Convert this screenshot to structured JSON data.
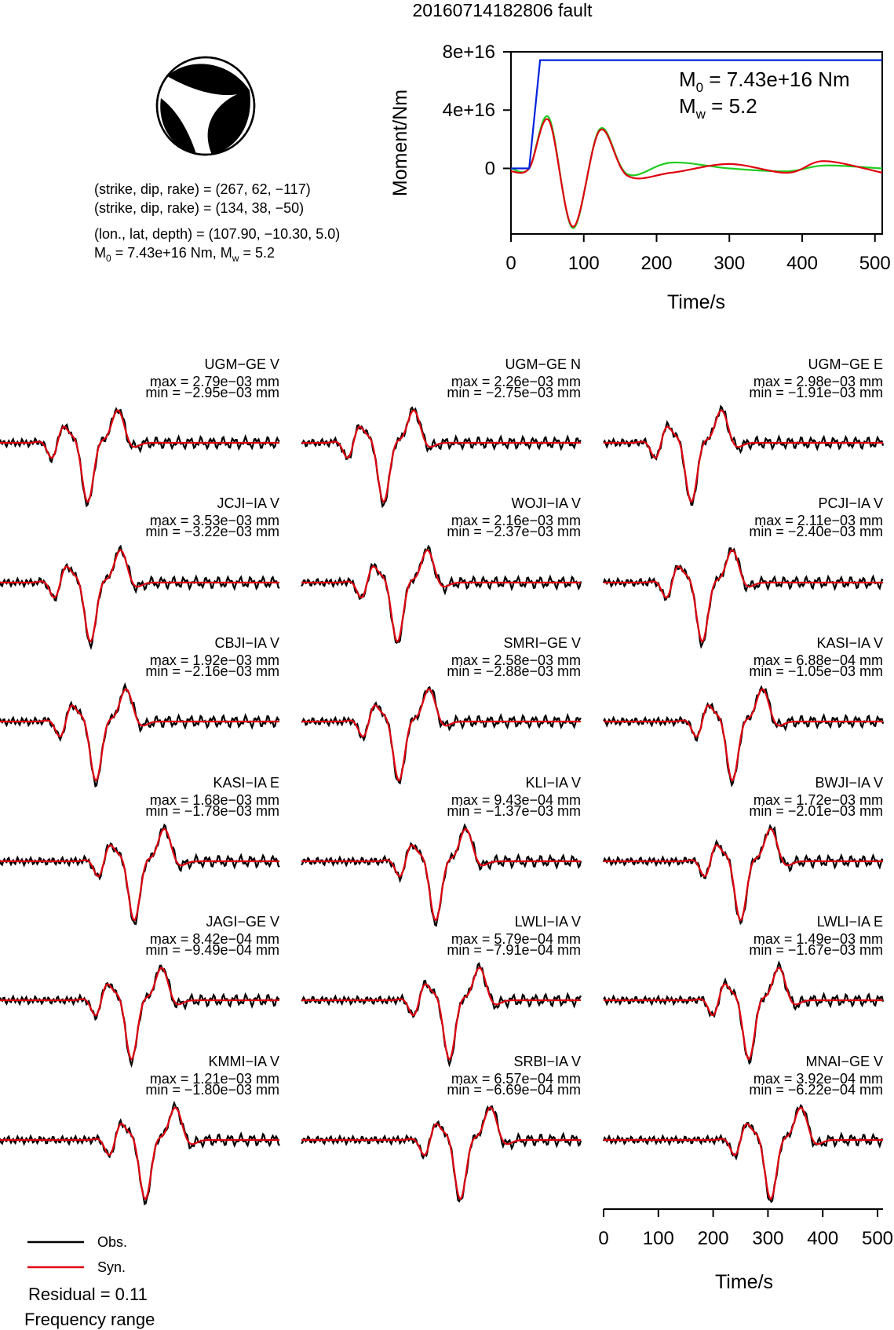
{
  "figure": {
    "title": "20160714182806 fault"
  },
  "mechanism": {
    "plane1": "(strike, dip, rake) = (267, 62, −117)",
    "plane2": "(strike, dip, rake) = (134, 38, −50)",
    "location": "(lon., lat, depth) = (107.90, −10.30, 5.0)",
    "moment_base": "M",
    "moment_sub": "0",
    "moment_value": " = 7.43e+16 Nm, M",
    "mw_sub": "w",
    "mw_value": " = 5.2",
    "colors": {
      "compressional": "#000000",
      "dilatational": "#ffffff"
    }
  },
  "moment_chart": {
    "ylabel": "Moment/Nm",
    "xlabel": "Time/s",
    "m0_base": "M",
    "m0_sub": "0",
    "m0_value": " = 7.43e+16 Nm",
    "mw_base": "M",
    "mw_sub": "w",
    "mw_value": " = 5.2",
    "x_ticks": [
      "0",
      "100",
      "200",
      "300",
      "400",
      "500"
    ],
    "y_ticks": [
      "0",
      "4e+16",
      "8e+16"
    ]
  },
  "waveform_axis": {
    "xlabel": "Time/s",
    "x_ticks": [
      "0",
      "100",
      "200",
      "300",
      "400",
      "500"
    ]
  },
  "legend": {
    "obs_label": "Obs.",
    "syn_label": "Syn.",
    "residual": "Residual = 0.11",
    "frequency": "Frequency range"
  },
  "colors": {
    "observed": "#000000",
    "synthetic": "#e0000f",
    "moment": "#0022dd",
    "stf_green": "#1fcc1f"
  },
  "chart_data": [
    {
      "type": "line",
      "title": "",
      "xlabel": "Time/s",
      "ylabel": "Moment/Nm",
      "xlim": [
        0,
        510
      ],
      "ylim": [
        -4.5e+16,
        8e+16
      ],
      "series": [
        {
          "color": "blue",
          "x": [
            0,
            25,
            40,
            510
          ],
          "values": [
            0,
            0,
            7.43e+16,
            7.43e+16
          ]
        },
        {
          "color": "red",
          "x": [
            0,
            25,
            52,
            85,
            122,
            160,
            220,
            300,
            380,
            430,
            510
          ],
          "values": [
            -2000000000000000.0,
            0,
            3.3e+16,
            -4e+16,
            2.6e+16,
            -5000000000000000.0,
            -3000000000000000.0,
            3000000000000000.0,
            -3000000000000000.0,
            5000000000000000.0,
            -3000000000000000.0
          ]
        },
        {
          "color": "green",
          "x": [
            0,
            25,
            52,
            85,
            122,
            160,
            220,
            300,
            380,
            430,
            510
          ],
          "values": [
            0,
            0,
            3.5e+16,
            -4.1e+16,
            2.7e+16,
            -4000000000000000.0,
            4000000000000000.0,
            0,
            -2000000000000000.0,
            2000000000000000.0,
            0
          ]
        }
      ]
    },
    {
      "type": "line",
      "xlabel": "Time/s",
      "xlim": [
        0,
        510
      ],
      "panels": [
        {
          "station": "UGM−GE V",
          "max": "max = 2.79e−03 mm",
          "min": "min = −2.95e−03 mm",
          "peak_time": 160,
          "polarity": 1
        },
        {
          "station": "UGM−GE N",
          "max": "max = 2.26e−03 mm",
          "min": "min = −2.75e−03 mm",
          "peak_time": 150,
          "polarity": 1
        },
        {
          "station": "UGM−GE E",
          "max": "max = 2.98e−03 mm",
          "min": "min = −1.91e−03 mm",
          "peak_time": 160,
          "polarity": 1
        },
        {
          "station": "JCJI−IA V",
          "max": "max = 3.53e−03 mm",
          "min": "min = −3.22e−03 mm",
          "peak_time": 165,
          "polarity": 1
        },
        {
          "station": "WOJI−IA V",
          "max": "max = 2.16e−03 mm",
          "min": "min = −2.37e−03 mm",
          "peak_time": 175,
          "polarity": 1
        },
        {
          "station": "PCJI−IA V",
          "max": "max = 2.11e−03 mm",
          "min": "min = −2.40e−03 mm",
          "peak_time": 180,
          "polarity": 1
        },
        {
          "station": "CBJI−IA V",
          "max": "max = 1.92e−03 mm",
          "min": "min = −2.16e−03 mm",
          "peak_time": 175,
          "polarity": 1
        },
        {
          "station": "SMRI−GE V",
          "max": "max = 2.58e−03 mm",
          "min": "min = −2.88e−03 mm",
          "peak_time": 178,
          "polarity": 1
        },
        {
          "station": "KASI−IA V",
          "max": "max = 6.88e−04 mm",
          "min": "min = −1.05e−03 mm",
          "peak_time": 235,
          "polarity": 1
        },
        {
          "station": "KASI−IA E",
          "max": "max = 1.68e−03 mm",
          "min": "min = −1.78e−03 mm",
          "peak_time": 245,
          "polarity": 1
        },
        {
          "station": "KLI−IA V",
          "max": "max = 9.43e−04 mm",
          "min": "min = −1.37e−03 mm",
          "peak_time": 245,
          "polarity": 1
        },
        {
          "station": "BWJI−IA V",
          "max": "max = 1.72e−03 mm",
          "min": "min = −2.01e−03 mm",
          "peak_time": 250,
          "polarity": 1
        },
        {
          "station": "JAGI−GE V",
          "max": "max = 8.42e−04 mm",
          "min": "min = −9.49e−04 mm",
          "peak_time": 240,
          "polarity": 1
        },
        {
          "station": "LWLI−IA V",
          "max": "max = 5.79e−04 mm",
          "min": "min = −7.91e−04 mm",
          "peak_time": 270,
          "polarity": 1
        },
        {
          "station": "LWLI−IA E",
          "max": "max = 1.49e−03 mm",
          "min": "min = −1.67e−03 mm",
          "peak_time": 265,
          "polarity": 1
        },
        {
          "station": "KMMI−IA V",
          "max": "max = 1.21e−03 mm",
          "min": "min = −1.80e−03 mm",
          "peak_time": 265,
          "polarity": 1
        },
        {
          "station": "SRBI−IA V",
          "max": "max = 6.57e−04 mm",
          "min": "min = −6.69e−04 mm",
          "peak_time": 290,
          "polarity": 1
        },
        {
          "station": "MNAI−GE V",
          "max": "max = 3.92e−04 mm",
          "min": "min = −6.22e−04 mm",
          "peak_time": 305,
          "polarity": 1
        }
      ]
    }
  ]
}
